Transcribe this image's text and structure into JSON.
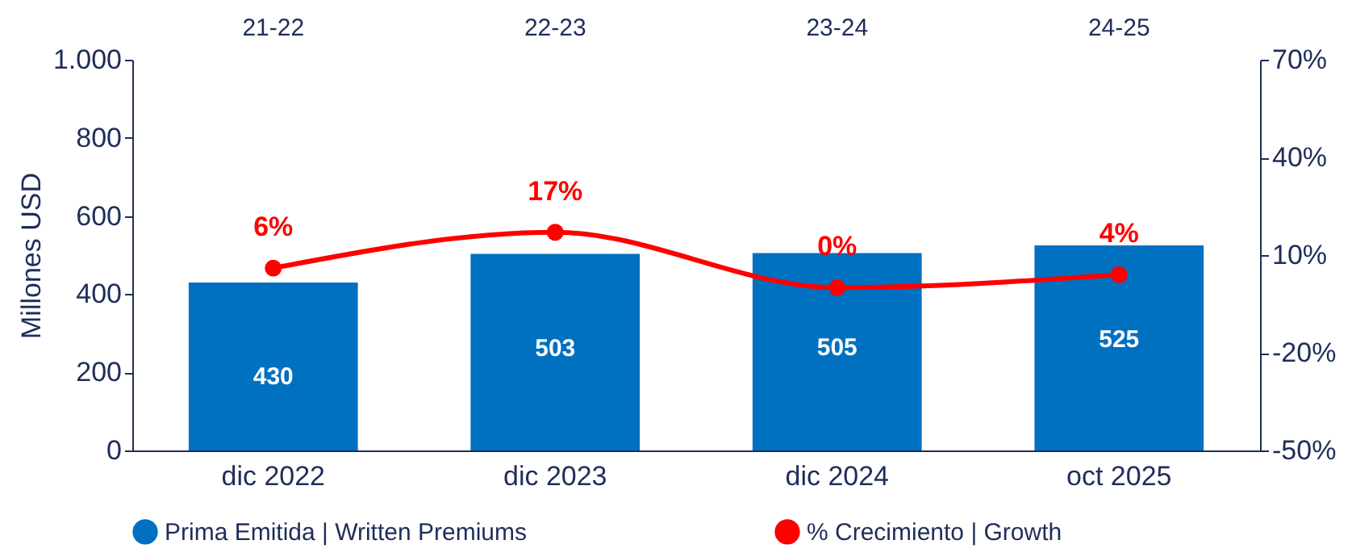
{
  "chart_data": {
    "type": "bar",
    "categories": [
      "dic 2022",
      "dic 2023",
      "dic 2024",
      "oct 2025"
    ],
    "ylabel": "Millones  USD",
    "ylim": [
      0,
      1000
    ],
    "yticks": [
      0,
      200,
      400,
      600,
      800,
      {
        "value": 1000,
        "label": "1.000"
      }
    ],
    "y2lim": [
      -50,
      70
    ],
    "y2ticks": [
      {
        "value": -50,
        "label": "-50%"
      },
      {
        "value": -20,
        "label": "-20%"
      },
      {
        "value": 10,
        "label": "10%"
      },
      {
        "value": 40,
        "label": "40%"
      },
      {
        "value": 70,
        "label": "70%"
      }
    ],
    "series": [
      {
        "name": "Prima Emitida | Written Premiums",
        "color": "#0070c0",
        "values": [
          430,
          503,
          505,
          525
        ],
        "value_labels": [
          "430",
          "503",
          "505",
          "525"
        ]
      },
      {
        "name": "% Crecimiento | Growth",
        "type": "line",
        "axis": "y2",
        "color": "#ff0000",
        "values": [
          6,
          17,
          0,
          4
        ],
        "value_labels": [
          "6%",
          "17%",
          "0%",
          "4%"
        ]
      }
    ],
    "marker": "circle",
    "legend": "bottom",
    "annotations": [
      "21-22",
      "22-23",
      "23-24",
      "24-25"
    ]
  }
}
